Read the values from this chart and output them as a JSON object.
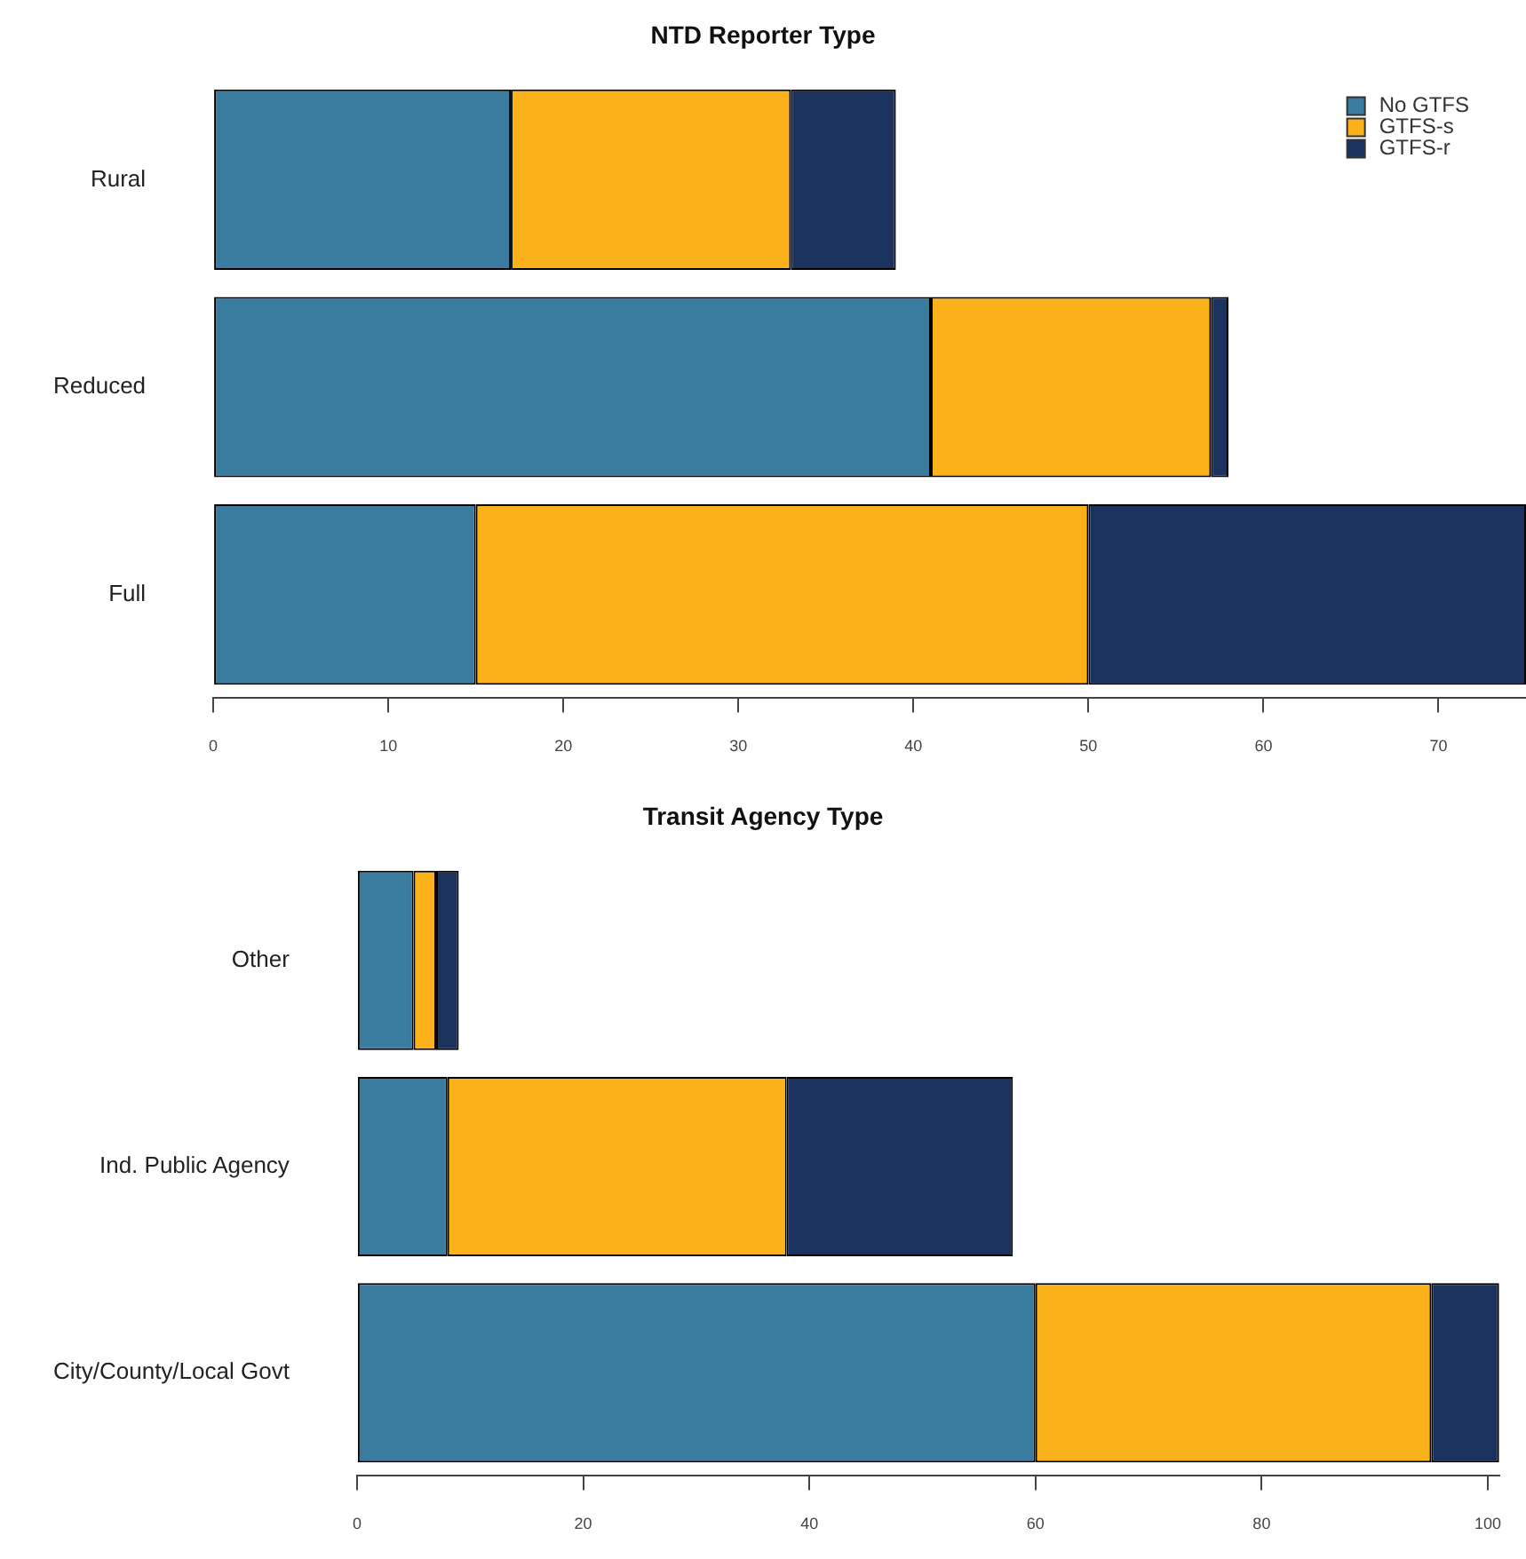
{
  "chart_data": [
    {
      "type": "bar",
      "title": "NTD Reporter Type",
      "orientation": "horizontal",
      "stacked": true,
      "categories": [
        "Rural",
        "Reduced",
        "Full"
      ],
      "series": [
        {
          "name": "No GTFS",
          "color": "#3a7ca0",
          "values": [
            17,
            41,
            15
          ]
        },
        {
          "name": "GTFS-s",
          "color": "#fbb11a",
          "values": [
            16,
            16,
            35
          ]
        },
        {
          "name": "GTFS-r",
          "color": "#1c325e",
          "values": [
            6,
            1,
            25
          ]
        }
      ],
      "xlim": [
        0,
        75
      ],
      "xticks": [
        0,
        10,
        20,
        30,
        40,
        50,
        60,
        70
      ],
      "grid": false,
      "legend": "top right"
    },
    {
      "type": "bar",
      "title": "Transit Agency Type",
      "orientation": "horizontal",
      "stacked": true,
      "categories": [
        "Other",
        "Ind. Public Agency",
        "City/County/Local Govt"
      ],
      "series": [
        {
          "color": "#3a7ca0",
          "values": [
            5,
            8,
            60
          ]
        },
        {
          "color": "#fbb11a",
          "values": [
            2,
            30,
            35
          ]
        },
        {
          "color": "#1c325e",
          "values": [
            2,
            20,
            6
          ]
        }
      ],
      "xlim": [
        0,
        101
      ],
      "xticks": [
        0,
        20,
        40,
        60,
        80,
        100
      ],
      "grid": false
    }
  ]
}
